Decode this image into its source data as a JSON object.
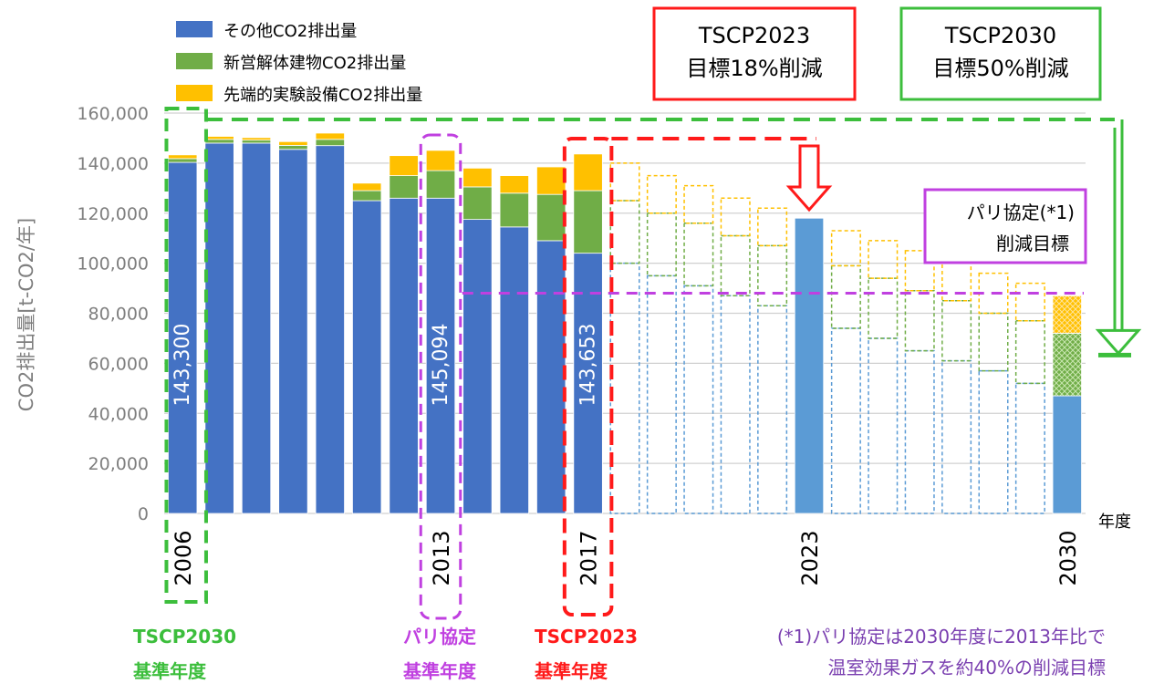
{
  "chart_data": {
    "type": "bar",
    "stacked": true,
    "ylabel": "CO2排出量[t-CO2/年]",
    "xlabel": "年度",
    "ylim": [
      0,
      160000
    ],
    "yticks": [
      0,
      20000,
      40000,
      60000,
      80000,
      100000,
      120000,
      140000,
      160000
    ],
    "ytick_labels": [
      "0",
      "20,000",
      "40,000",
      "60,000",
      "80,000",
      "100,000",
      "120,000",
      "140,000",
      "160,000"
    ],
    "grid": true,
    "legend_position": "top-left",
    "categories": [
      "2006",
      "2007",
      "2008",
      "2009",
      "2010",
      "2011",
      "2012",
      "2013",
      "2014",
      "2015",
      "2016",
      "2017",
      "2018",
      "2019",
      "2020",
      "2021",
      "2022",
      "2023",
      "2024",
      "2025",
      "2026",
      "2027",
      "2028",
      "2029",
      "2030"
    ],
    "x_tick_labels": [
      "2006",
      "2013",
      "2017",
      "2023",
      "2030"
    ],
    "series": [
      {
        "name": "その他CO2排出量",
        "color": "#4472c4",
        "values": [
          140300,
          148000,
          148000,
          145500,
          147000,
          125000,
          126000,
          126000,
          117500,
          114500,
          109000,
          104000,
          null,
          null,
          null,
          null,
          null,
          118000,
          null,
          null,
          null,
          null,
          null,
          null,
          47000
        ]
      },
      {
        "name": "新営解体建物CO2排出量",
        "color": "#70ad47",
        "values": [
          1500,
          1500,
          1200,
          1600,
          2500,
          4000,
          9000,
          11000,
          13000,
          13500,
          18500,
          25000,
          null,
          null,
          null,
          null,
          null,
          0,
          null,
          null,
          null,
          null,
          null,
          null,
          25000
        ]
      },
      {
        "name": "先端的実験設備CO2排出量",
        "color": "#ffc000",
        "values": [
          1500,
          1200,
          1000,
          1500,
          2500,
          3000,
          8000,
          8094,
          7500,
          7000,
          11000,
          14653,
          null,
          null,
          null,
          null,
          null,
          0,
          null,
          null,
          null,
          null,
          null,
          null,
          15000
        ]
      }
    ],
    "projection": {
      "years": [
        "2018",
        "2019",
        "2020",
        "2021",
        "2022",
        "2024",
        "2025",
        "2026",
        "2027",
        "2028",
        "2029"
      ],
      "other": [
        100000,
        95000,
        91000,
        87000,
        83000,
        74000,
        70000,
        65000,
        61000,
        57000,
        52000
      ],
      "new_buildings": [
        125000,
        120000,
        116000,
        111000,
        107000,
        99000,
        94000,
        89000,
        85000,
        80000,
        77000
      ],
      "equipment": [
        140000,
        135000,
        131000,
        126000,
        122000,
        113000,
        109000,
        105000,
        100000,
        96000,
        92000
      ]
    },
    "bar_labels": [
      {
        "category": "2006",
        "text": "143,300"
      },
      {
        "category": "2013",
        "text": "145,094"
      },
      {
        "category": "2017",
        "text": "143,653"
      }
    ],
    "reference_lines": {
      "tscp2030_base": 143300,
      "tscp2030_target": 64000,
      "paris_target": 88000,
      "tscp2023_from": 150000,
      "tscp2023_target": 118000
    },
    "annotations": {
      "tscp2023_box": [
        "TSCP2023",
        "目標18%削減"
      ],
      "tscp2030_box": [
        "TSCP2030",
        "目標50%削減"
      ],
      "paris_box": [
        "パリ協定(*1)",
        "削減目標"
      ],
      "tscp2030_base_label": [
        "TSCP2030",
        "基準年度"
      ],
      "paris_base_label": [
        "パリ協定",
        "基準年度"
      ],
      "tscp2023_base_label": [
        "TSCP2023",
        "基準年度"
      ],
      "footnote": [
        "(*1)パリ協定は2030年度に2013年比で",
        "温室効果ガスを約40%の削減目標"
      ]
    },
    "colors": {
      "green": "#3cbe3c",
      "purple": "#c040e0",
      "red": "#ff1a1a",
      "light_blue": "#5b9bd5",
      "grid": "#d0d0d0",
      "axis_text": "#7f7f7f",
      "footnote": "#7a3fb0"
    }
  }
}
